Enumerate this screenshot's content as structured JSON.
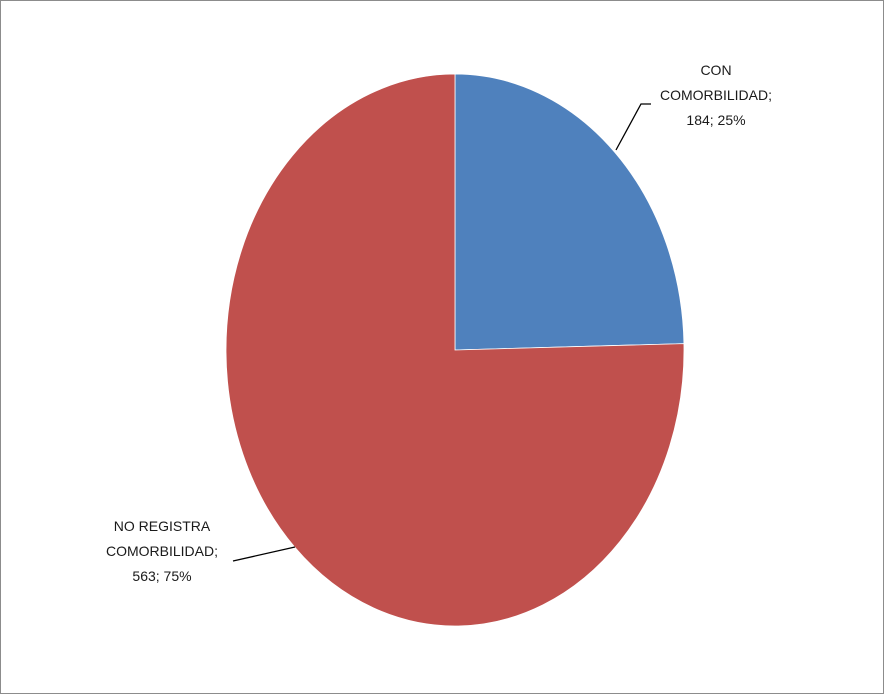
{
  "chart_data": {
    "type": "pie",
    "slices": [
      {
        "category": "CON COMORBILIDAD",
        "value": 184,
        "percent": 25,
        "color": "#4f81bd",
        "label_lines": [
          "CON",
          "COMORBILIDAD;",
          "184; 25%"
        ]
      },
      {
        "category": "NO REGISTRA COMORBILIDAD",
        "value": 563,
        "percent": 75,
        "color": "#c0504d",
        "label_lines": [
          "NO REGISTRA",
          "COMORBILIDAD;",
          "563; 75%"
        ]
      }
    ],
    "start_angle": "12 o'clock",
    "direction": "clockwise",
    "legend": "none"
  }
}
